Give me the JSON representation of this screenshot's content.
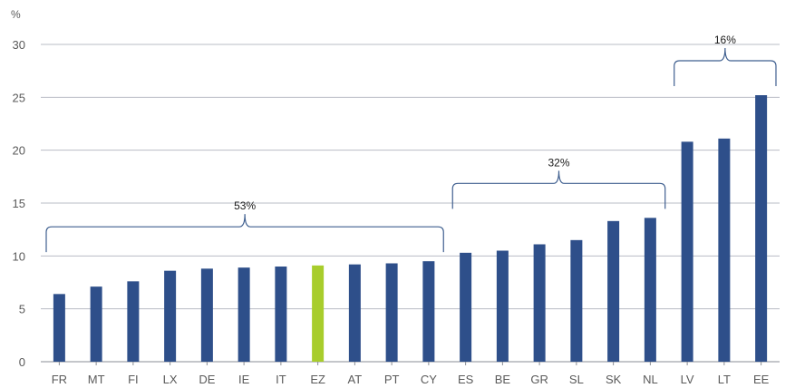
{
  "chart_data": {
    "type": "bar",
    "unit_label": "%",
    "categories": [
      "FR",
      "MT",
      "FI",
      "LX",
      "DE",
      "IE",
      "IT",
      "EZ",
      "AT",
      "PT",
      "CY",
      "ES",
      "BE",
      "GR",
      "SL",
      "SK",
      "NL",
      "LV",
      "LT",
      "EE"
    ],
    "values": [
      6.4,
      7.1,
      7.6,
      8.6,
      8.8,
      8.9,
      9.0,
      9.1,
      9.2,
      9.3,
      9.5,
      10.3,
      10.5,
      11.1,
      11.5,
      13.3,
      13.6,
      20.8,
      21.1,
      25.2
    ],
    "highlight_category": "EZ",
    "ylim": [
      0,
      30
    ],
    "yticks": [
      0,
      5,
      10,
      15,
      20,
      25,
      30
    ],
    "grid": true,
    "colors": {
      "bar": "#2e4f8a",
      "highlight": "#a8cd2c",
      "brace": "#3f5f8f"
    },
    "groups": [
      {
        "label": "53%",
        "from": "FR",
        "to": "CY"
      },
      {
        "label": "32%",
        "from": "ES",
        "to": "NL"
      },
      {
        "label": "16%",
        "from": "LV",
        "to": "EE"
      }
    ]
  }
}
